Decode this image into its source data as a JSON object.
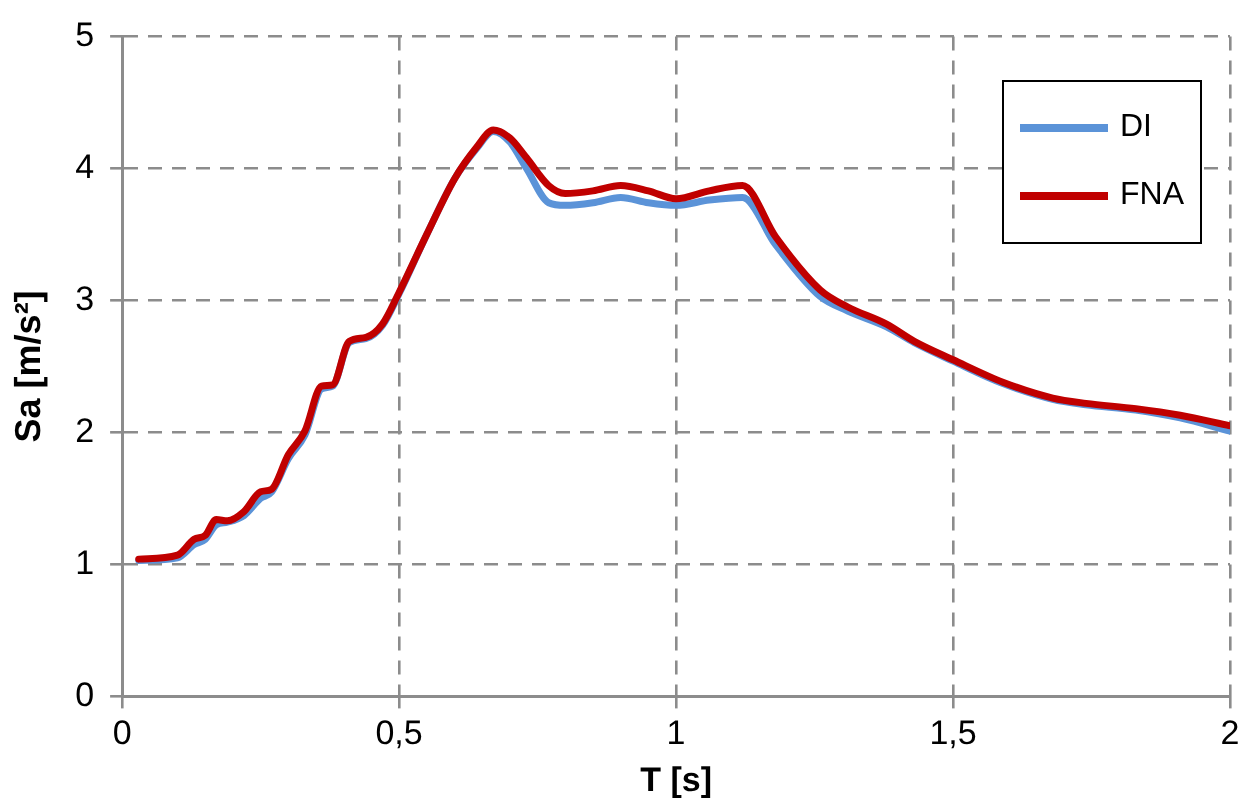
{
  "chart_data": {
    "type": "line",
    "xlabel": "T [s]",
    "ylabel": "Sa [m/s²]",
    "x": [
      0.03,
      0.1,
      0.13,
      0.15,
      0.17,
      0.19,
      0.22,
      0.25,
      0.27,
      0.3,
      0.33,
      0.36,
      0.38,
      0.41,
      0.44,
      0.47,
      0.5,
      0.55,
      0.6,
      0.64,
      0.67,
      0.7,
      0.73,
      0.77,
      0.8,
      0.85,
      0.9,
      0.95,
      1.0,
      1.06,
      1.12,
      1.18,
      1.26,
      1.31,
      1.38,
      1.43,
      1.5,
      1.59,
      1.68,
      1.74,
      1.83,
      1.91,
      2.0
    ],
    "series": [
      {
        "name": "DI",
        "color": "#5b93d8",
        "values": [
          1.03,
          1.05,
          1.15,
          1.19,
          1.3,
          1.32,
          1.37,
          1.5,
          1.55,
          1.8,
          1.98,
          2.33,
          2.35,
          2.68,
          2.71,
          2.81,
          3.05,
          3.5,
          3.92,
          4.15,
          4.28,
          4.2,
          4.0,
          3.74,
          3.72,
          3.74,
          3.78,
          3.74,
          3.72,
          3.76,
          3.78,
          3.42,
          3.03,
          2.92,
          2.8,
          2.68,
          2.54,
          2.37,
          2.25,
          2.21,
          2.17,
          2.11,
          2.01
        ]
      },
      {
        "name": "FNA",
        "color": "#c00000",
        "values": [
          1.04,
          1.07,
          1.19,
          1.22,
          1.34,
          1.33,
          1.4,
          1.55,
          1.57,
          1.83,
          2.01,
          2.35,
          2.36,
          2.69,
          2.72,
          2.82,
          3.06,
          3.5,
          3.92,
          4.16,
          4.29,
          4.23,
          4.08,
          3.87,
          3.81,
          3.83,
          3.87,
          3.83,
          3.77,
          3.83,
          3.87,
          3.48,
          3.08,
          2.95,
          2.82,
          2.69,
          2.55,
          2.38,
          2.26,
          2.22,
          2.18,
          2.13,
          2.05
        ]
      }
    ],
    "xlim": [
      0,
      2
    ],
    "xticks": [
      0,
      {
        "value": 0.5,
        "label": "0,5"
      },
      1,
      {
        "value": 1.5,
        "label": "1,5"
      },
      2
    ],
    "ylim": [
      0,
      5
    ],
    "yticks": [
      0,
      1,
      2,
      3,
      4,
      5
    ],
    "grid": true,
    "legend": "top right",
    "marker": "none",
    "line_style": "solid"
  }
}
